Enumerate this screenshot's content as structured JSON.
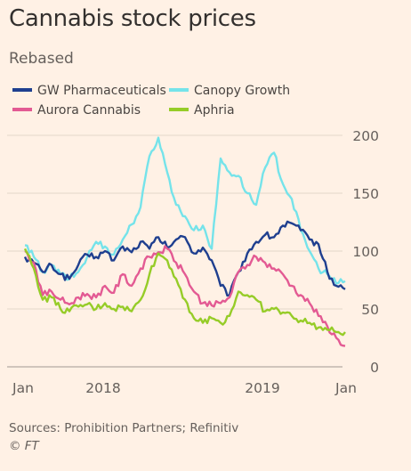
{
  "header": {
    "title": "Cannabis stock prices",
    "subtitle": "Rebased"
  },
  "footer": {
    "source": "Sources: Prohibition Partners; Refinitiv",
    "credit": "© FT"
  },
  "chart_data": {
    "type": "line",
    "title": "Cannabis stock prices",
    "subtitle": "Rebased",
    "ylim": [
      0,
      200
    ],
    "y_ticks": [
      0,
      50,
      100,
      150,
      200
    ],
    "x_ticks": [
      "Jan",
      "2018",
      "2019",
      "Jan"
    ],
    "grid": true,
    "legend_position": "top",
    "x": [
      "2017-01",
      "2017-02",
      "2017-03",
      "2017-04",
      "2017-05",
      "2017-06",
      "2017-07",
      "2017-08",
      "2017-09",
      "2017-10",
      "2017-11",
      "2017-12",
      "2018-01",
      "2018-02",
      "2018-03",
      "2018-04",
      "2018-05",
      "2018-06",
      "2018-07",
      "2018-08",
      "2018-09",
      "2018-10",
      "2018-11",
      "2018-12",
      "2019-01",
      "2019-02",
      "2019-03",
      "2019-04",
      "2019-05",
      "2019-06",
      "2019-07",
      "2019-08",
      "2019-09",
      "2019-10",
      "2019-11",
      "2019-12",
      "2020-01"
    ],
    "series": [
      {
        "name": "GW Pharmaceuticals",
        "color": "#1f3f8f",
        "values": [
          95,
          90,
          82,
          88,
          80,
          76,
          88,
          97,
          95,
          100,
          92,
          104,
          99,
          108,
          102,
          112,
          103,
          110,
          112,
          98,
          103,
          92,
          70,
          62,
          82,
          98,
          108,
          114,
          112,
          122,
          124,
          118,
          110,
          106,
          82,
          70,
          67
        ]
      },
      {
        "name": "Canopy Growth",
        "color": "#75e3ea",
        "values": [
          105,
          95,
          82,
          88,
          80,
          76,
          82,
          95,
          108,
          104,
          97,
          110,
          123,
          138,
          182,
          198,
          168,
          140,
          130,
          118,
          122,
          102,
          180,
          168,
          165,
          150,
          140,
          172,
          185,
          158,
          145,
          118,
          100,
          85,
          80,
          72,
          74
        ]
      },
      {
        "name": "Aurora Cannabis",
        "color": "#e35a93",
        "values": [
          100,
          90,
          62,
          65,
          58,
          54,
          60,
          63,
          60,
          70,
          64,
          80,
          70,
          85,
          95,
          99,
          102,
          90,
          80,
          65,
          55,
          53,
          55,
          60,
          82,
          88,
          95,
          90,
          85,
          80,
          70,
          62,
          55,
          44,
          35,
          25,
          18
        ]
      },
      {
        "name": "Aphria",
        "color": "#96cc28",
        "values": [
          102,
          85,
          58,
          60,
          50,
          48,
          52,
          54,
          50,
          55,
          50,
          52,
          48,
          58,
          80,
          98,
          92,
          76,
          58,
          42,
          38,
          42,
          38,
          44,
          65,
          62,
          58,
          48,
          50,
          47,
          44,
          40,
          38,
          34,
          32,
          30,
          30
        ]
      }
    ]
  }
}
